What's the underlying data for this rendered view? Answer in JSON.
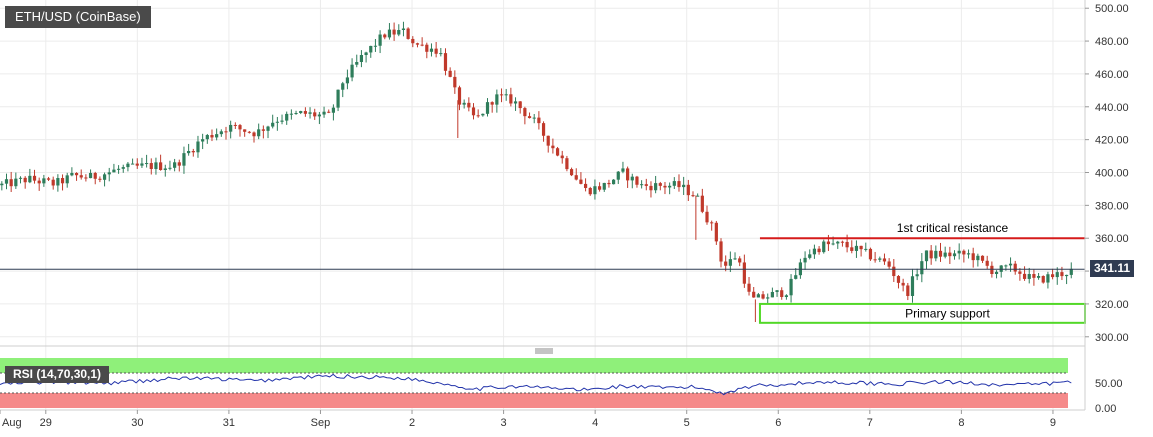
{
  "chart_data": [
    {
      "type": "candlestick",
      "symbol": "ETH/USD (CoinBase)",
      "ylim": [
        295,
        505
      ],
      "y_ticks": [
        "500.00",
        "480.00",
        "460.00",
        "440.00",
        "420.00",
        "400.00",
        "380.00",
        "360.00",
        "340.00",
        "320.00",
        "300.00"
      ],
      "y_tick_values": [
        500,
        480,
        460,
        440,
        420,
        400,
        380,
        360,
        340,
        320,
        300
      ],
      "x_tick_labels": [
        "Aug",
        "29",
        "30",
        "31",
        "Sep",
        "2",
        "3",
        "4",
        "5",
        "6",
        "7",
        "8",
        "9"
      ],
      "x_tick_positions": [
        0,
        0.5,
        1.5,
        2.5,
        3.5,
        4.5,
        5.5,
        6.5,
        7.5,
        8.5,
        9.5,
        10.5,
        11.5
      ],
      "x_range": [
        0,
        11.85
      ],
      "last_price": "341.11",
      "last_price_value": 341.11,
      "resistance": {
        "label": "1st critical resistance",
        "value": 360,
        "from": 8.3,
        "to": 11.85
      },
      "support": {
        "label": "Primary support",
        "low": 308.5,
        "high": 320,
        "from": 8.3,
        "to": 11.85
      },
      "series": [
        {
          "name": "price",
          "anchors": [
            [
              0,
              392
            ],
            [
              0.3,
              396
            ],
            [
              0.6,
              393
            ],
            [
              0.8,
              398
            ],
            [
              1.0,
              397
            ],
            [
              1.3,
              402
            ],
            [
              1.6,
              404
            ],
            [
              1.9,
              404
            ],
            [
              2.2,
              420
            ],
            [
              2.5,
              428
            ],
            [
              2.8,
              424
            ],
            [
              3.0,
              432
            ],
            [
              3.3,
              436
            ],
            [
              3.6,
              434
            ],
            [
              3.75,
              456
            ],
            [
              3.95,
              470
            ],
            [
              4.2,
              484
            ],
            [
              4.4,
              486
            ],
            [
              4.55,
              478
            ],
            [
              4.8,
              474
            ],
            [
              5.0,
              444
            ],
            [
              5.2,
              432
            ],
            [
              5.4,
              446
            ],
            [
              5.6,
              444
            ],
            [
              5.85,
              430
            ],
            [
              6.0,
              418
            ],
            [
              6.2,
              404
            ],
            [
              6.4,
              389
            ],
            [
              6.6,
              392
            ],
            [
              6.8,
              400
            ],
            [
              7.0,
              392
            ],
            [
              7.2,
              392
            ],
            [
              7.4,
              392
            ],
            [
              7.6,
              386
            ],
            [
              7.8,
              364
            ],
            [
              7.9,
              342
            ],
            [
              8.05,
              350
            ],
            [
              8.2,
              322
            ],
            [
              8.4,
              325
            ],
            [
              8.6,
              328
            ],
            [
              8.8,
              350
            ],
            [
              9.0,
              356
            ],
            [
              9.2,
              356
            ],
            [
              9.4,
              352
            ],
            [
              9.7,
              344
            ],
            [
              9.9,
              326
            ],
            [
              10.1,
              350
            ],
            [
              10.4,
              350
            ],
            [
              10.6,
              350
            ],
            [
              10.85,
              340
            ],
            [
              11.05,
              342
            ],
            [
              11.3,
              334
            ],
            [
              11.55,
              338
            ],
            [
              11.7,
              340
            ]
          ]
        }
      ]
    },
    {
      "type": "line",
      "title": "RSI (14,70,30,1)",
      "ylim": [
        0,
        100
      ],
      "y_ticks": [
        "50.00",
        "0.00"
      ],
      "y_tick_values": [
        50,
        0
      ],
      "overbought": 70,
      "oversold": 30,
      "series": [
        {
          "name": "RSI",
          "anchors": [
            [
              0,
              48
            ],
            [
              0.6,
              52
            ],
            [
              1.2,
              50
            ],
            [
              1.6,
              55
            ],
            [
              2.0,
              60
            ],
            [
              2.4,
              58
            ],
            [
              2.8,
              54
            ],
            [
              3.2,
              60
            ],
            [
              3.6,
              64
            ],
            [
              4.0,
              62
            ],
            [
              4.4,
              60
            ],
            [
              4.8,
              50
            ],
            [
              5.2,
              38
            ],
            [
              5.6,
              44
            ],
            [
              6.0,
              40
            ],
            [
              6.4,
              36
            ],
            [
              6.8,
              44
            ],
            [
              7.2,
              40
            ],
            [
              7.6,
              42
            ],
            [
              7.9,
              30
            ],
            [
              8.2,
              44
            ],
            [
              8.6,
              48
            ],
            [
              9.0,
              52
            ],
            [
              9.4,
              50
            ],
            [
              9.8,
              48
            ],
            [
              10.2,
              52
            ],
            [
              10.6,
              50
            ],
            [
              11.0,
              46
            ],
            [
              11.4,
              48
            ],
            [
              11.7,
              52
            ]
          ]
        }
      ]
    }
  ],
  "colors": {
    "up": "#2e7d5b",
    "down": "#c0392b",
    "resistance": "#d61b1b",
    "support": "#52d827",
    "rsi_line": "#2233aa",
    "rsi_overbought": "#8ff07a",
    "rsi_oversold": "#f58a8a",
    "last_price_line": "#2f3b52"
  }
}
